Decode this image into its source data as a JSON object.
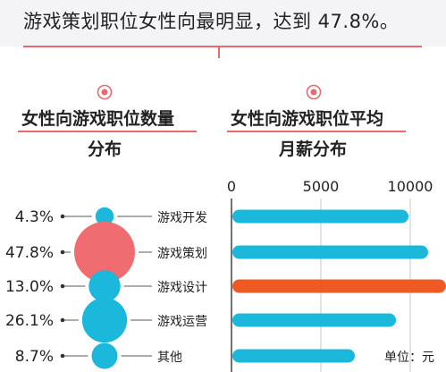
{
  "headline": "游戏策划职位女性向最明显，达到 47.8%。",
  "left_section": {
    "title_line1": "女性向游戏职位数量",
    "title_line2": "分布"
  },
  "right_section": {
    "title_line1": "女性向游戏职位平均",
    "title_line2": "月薪分布"
  },
  "unit_label": "单位：元",
  "colors": {
    "accent": "#e66a6f",
    "bar": "#1bb8dc",
    "highlight_bar": "#ef5a24",
    "bubble": "#1bb8dc",
    "highlight_bubble": "#ef6c71",
    "guide_line": "#7a7a7a",
    "label_text": "#222222"
  },
  "chart_data": [
    {
      "type": "bubble",
      "categories": [
        "游戏开发",
        "游戏策划",
        "游戏设计",
        "游戏运营",
        "其他"
      ],
      "values": [
        4.3,
        47.8,
        13.0,
        26.1,
        8.7
      ],
      "value_labels": [
        "4.3%",
        "47.8%",
        "13.0%",
        "26.1%",
        "8.7%"
      ],
      "highlight": "游戏策划"
    },
    {
      "type": "bar",
      "orientation": "horizontal",
      "categories": [
        "游戏开发",
        "游戏策划",
        "游戏设计",
        "游戏运营",
        "其他"
      ],
      "values": [
        9900,
        11000,
        12000,
        9200,
        6900
      ],
      "xlim": [
        0,
        12000
      ],
      "xticks": [
        0,
        5000,
        10000
      ],
      "xtick_labels": [
        "0",
        "5000",
        "10000"
      ],
      "highlight": "游戏设计",
      "grid": true
    }
  ]
}
